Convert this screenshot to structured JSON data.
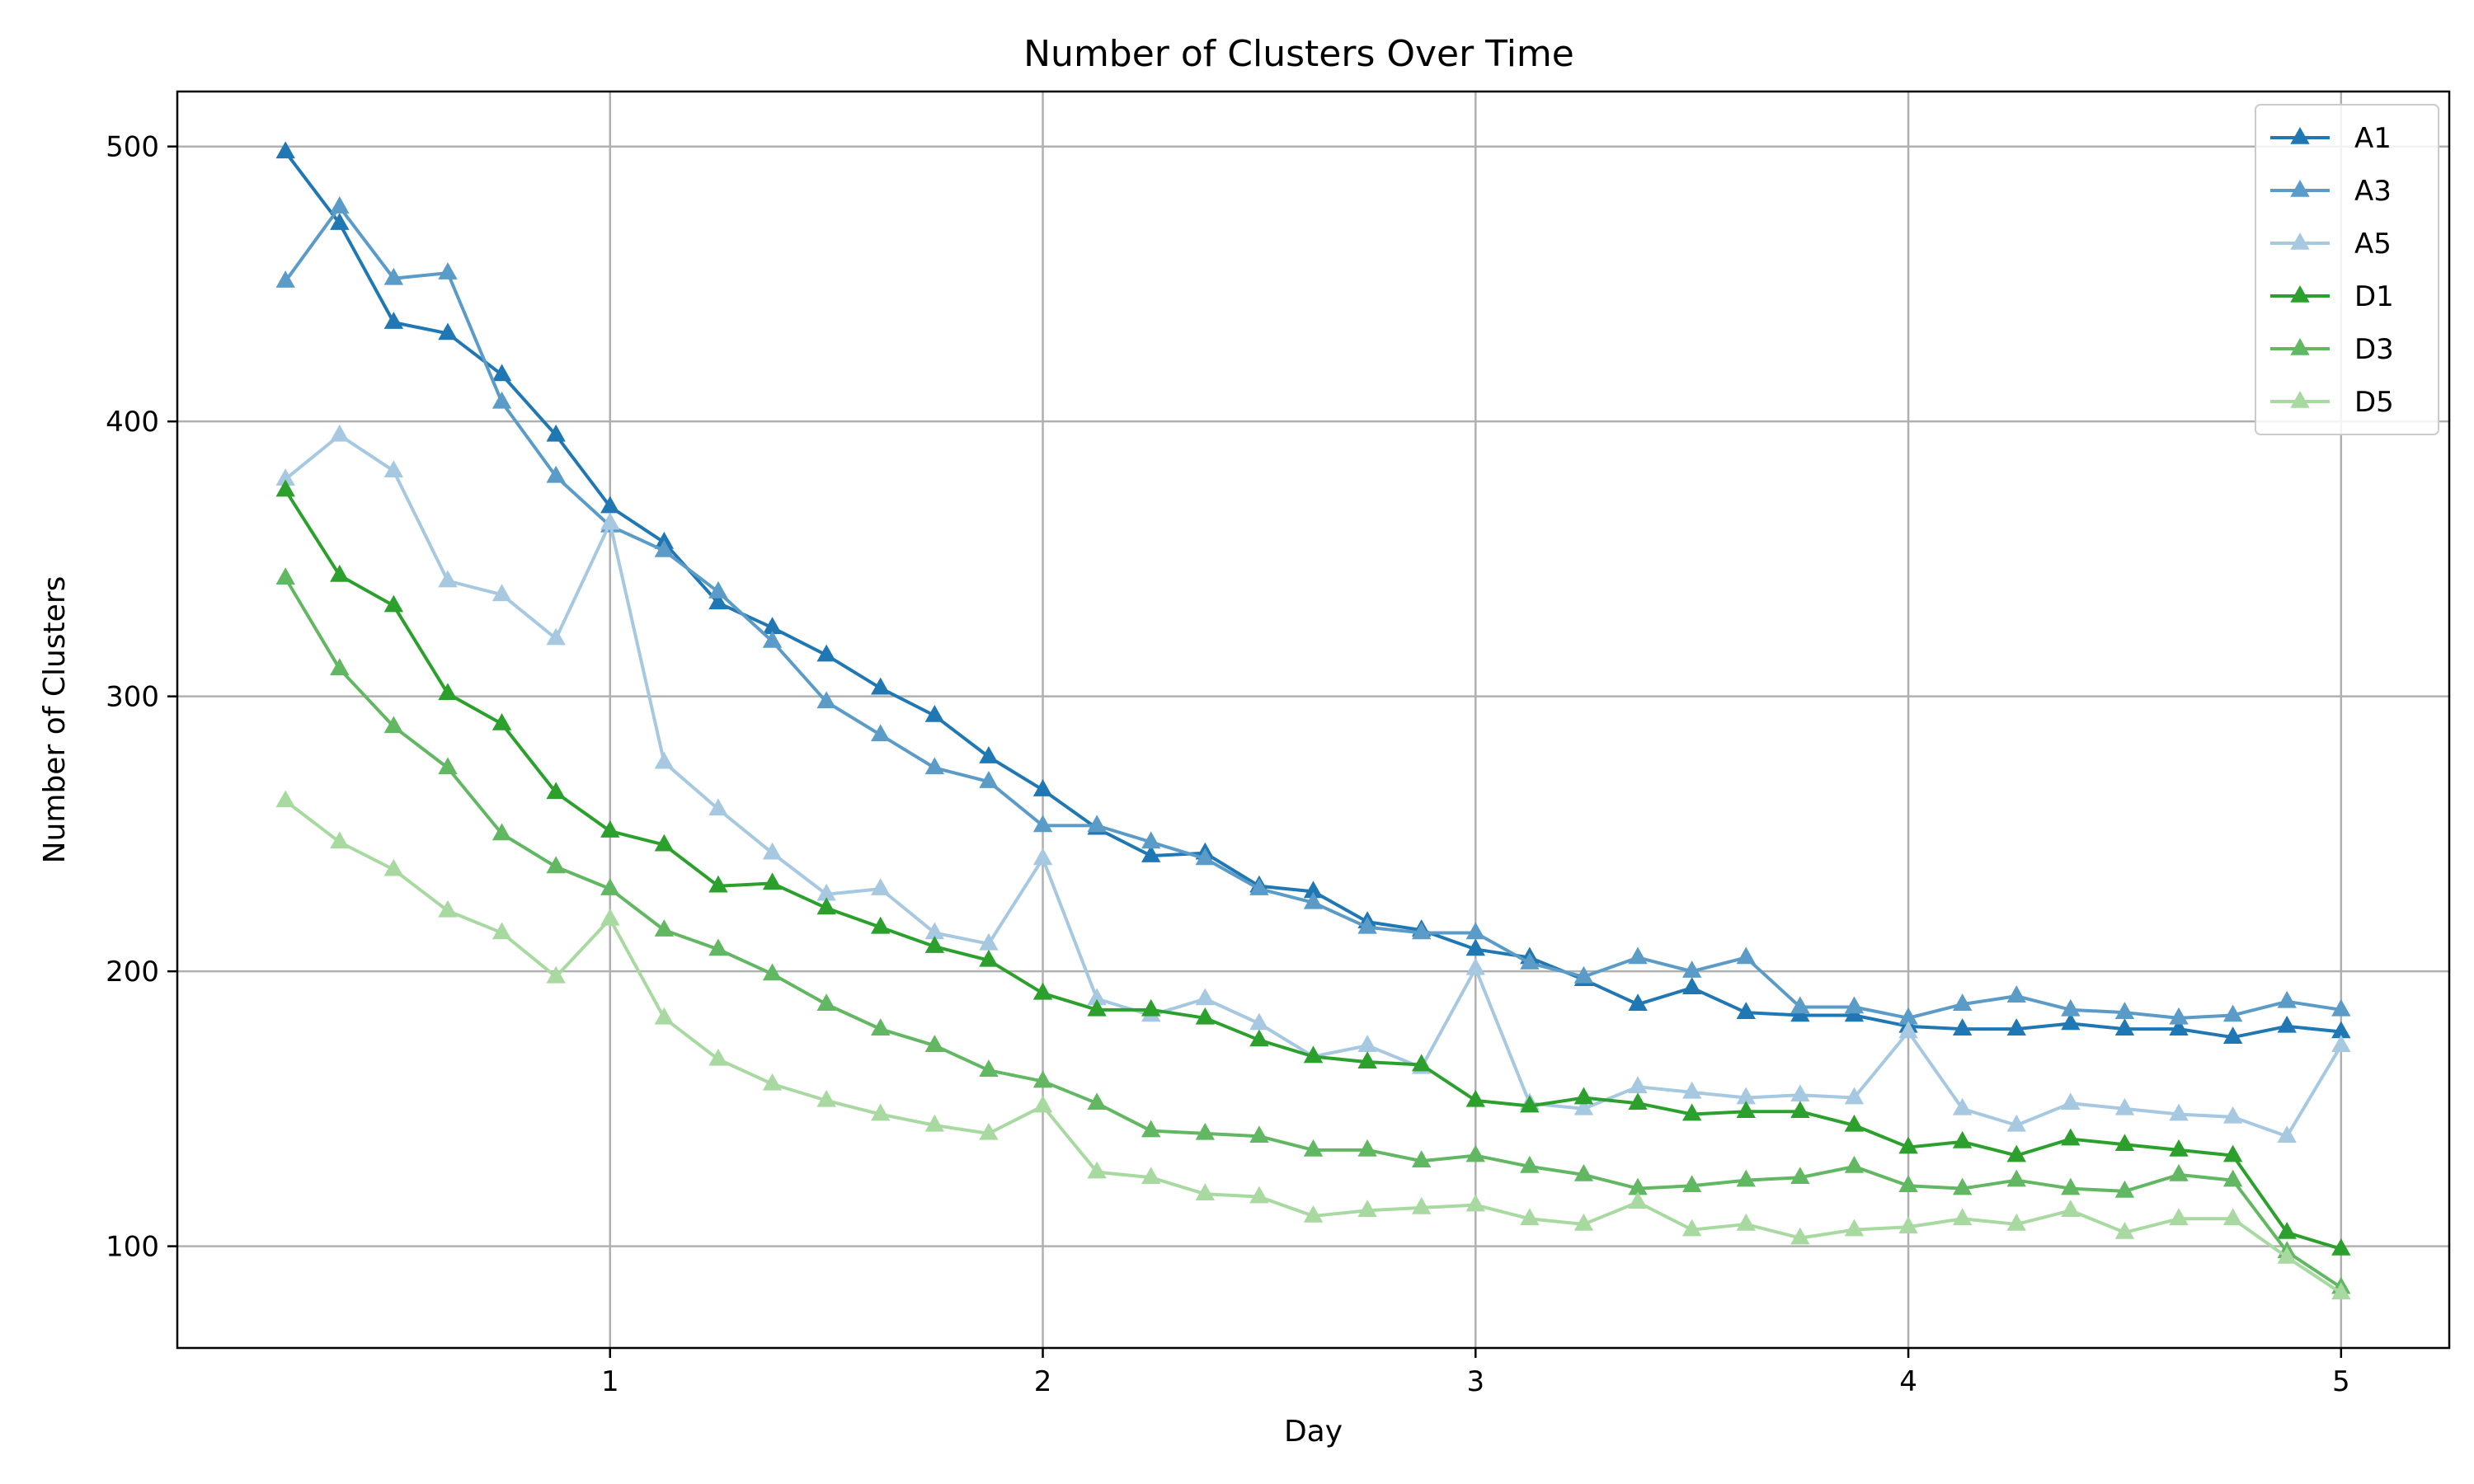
{
  "chart_data": {
    "type": "line",
    "title": "Number of Clusters Over Time",
    "xlabel": "Day",
    "ylabel": "Number of Clusters",
    "xlim": [
      0.0,
      5.25
    ],
    "ylim": [
      63,
      520
    ],
    "xticks": [
      1,
      2,
      3,
      4,
      5
    ],
    "yticks": [
      100,
      200,
      300,
      400,
      500
    ],
    "grid": true,
    "legend_position": "top-right",
    "marker": "triangle-up",
    "x": [
      0.25,
      0.375,
      0.5,
      0.625,
      0.75,
      0.875,
      1.0,
      1.125,
      1.25,
      1.375,
      1.5,
      1.625,
      1.75,
      1.875,
      2.0,
      2.125,
      2.25,
      2.375,
      2.5,
      2.625,
      2.75,
      2.875,
      3.0,
      3.125,
      3.25,
      3.375,
      3.5,
      3.625,
      3.75,
      3.875,
      4.0,
      4.125,
      4.25,
      4.375,
      4.5,
      4.625,
      4.75,
      4.875,
      5.0
    ],
    "series": [
      {
        "name": "A1",
        "color": "#1f77b4",
        "values": [
          498,
          472,
          436,
          432,
          417,
          395,
          369,
          356,
          334,
          325,
          315,
          303,
          293,
          278,
          266,
          252,
          242,
          243,
          231,
          229,
          218,
          215,
          208,
          205,
          197,
          188,
          194,
          185,
          184,
          184,
          180,
          179,
          179,
          181,
          179,
          179,
          176,
          180,
          178
        ]
      },
      {
        "name": "A3",
        "color": "#5b9bc8",
        "values": [
          451,
          478,
          452,
          454,
          407,
          380,
          362,
          353,
          338,
          320,
          298,
          286,
          274,
          269,
          253,
          253,
          247,
          241,
          230,
          225,
          216,
          214,
          214,
          203,
          198,
          205,
          200,
          205,
          187,
          187,
          183,
          188,
          191,
          186,
          185,
          183,
          184,
          189,
          186
        ]
      },
      {
        "name": "A5",
        "color": "#a6c8e0",
        "values": [
          379,
          395,
          382,
          342,
          337,
          321,
          363,
          276,
          259,
          243,
          228,
          230,
          214,
          210,
          241,
          190,
          184,
          190,
          181,
          169,
          173,
          165,
          201,
          152,
          150,
          158,
          156,
          154,
          155,
          154,
          178,
          150,
          144,
          152,
          150,
          148,
          147,
          140,
          173
        ]
      },
      {
        "name": "D1",
        "color": "#2ca02c",
        "values": [
          375,
          344,
          333,
          301,
          290,
          265,
          251,
          246,
          231,
          232,
          223,
          216,
          209,
          204,
          192,
          186,
          186,
          183,
          175,
          169,
          167,
          166,
          153,
          151,
          154,
          152,
          148,
          149,
          149,
          144,
          136,
          138,
          133,
          139,
          137,
          135,
          133,
          105,
          99
        ]
      },
      {
        "name": "D3",
        "color": "#62b762",
        "values": [
          343,
          310,
          289,
          274,
          250,
          238,
          230,
          215,
          208,
          199,
          188,
          179,
          173,
          164,
          160,
          152,
          142,
          141,
          140,
          135,
          135,
          131,
          133,
          129,
          126,
          121,
          122,
          124,
          125,
          129,
          122,
          121,
          124,
          121,
          120,
          126,
          124,
          98,
          85
        ]
      },
      {
        "name": "D5",
        "color": "#a7d9a0",
        "values": [
          262,
          247,
          237,
          222,
          214,
          198,
          219,
          183,
          168,
          159,
          153,
          148,
          144,
          141,
          151,
          127,
          125,
          119,
          118,
          111,
          113,
          114,
          115,
          110,
          108,
          116,
          106,
          108,
          103,
          106,
          107,
          110,
          108,
          113,
          105,
          110,
          110,
          96,
          83
        ]
      }
    ]
  }
}
